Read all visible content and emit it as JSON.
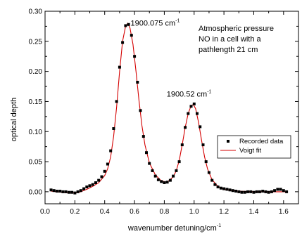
{
  "chart_data": {
    "type": "scatter",
    "xlabel": "wavenumber detuning/cm",
    "xlabel_sup": "-1",
    "ylabel": "optical depth",
    "xlim": [
      0.0,
      1.7
    ],
    "ylim": [
      -0.02,
      0.3
    ],
    "xticks": [
      0.0,
      0.2,
      0.4,
      0.6,
      0.8,
      1.0,
      1.2,
      1.4,
      1.6
    ],
    "xtick_labels": [
      "0.0",
      "0.2",
      "0.4",
      "0.6",
      "0.8",
      "1.0",
      "1.2",
      "1.4",
      "1.6"
    ],
    "yticks": [
      0.0,
      0.05,
      0.1,
      0.15,
      0.2,
      0.25,
      0.3
    ],
    "ytick_labels": [
      "0.00",
      "0.05",
      "0.10",
      "0.15",
      "0.20",
      "0.25",
      "0.30"
    ],
    "legend_position": "right",
    "colors": {
      "data": "#000000",
      "fit": "#d40000",
      "axis": "#000000"
    },
    "annotations": {
      "peak1": {
        "text": "1900.075 cm",
        "sup": "-1",
        "x": 0.555,
        "y": 0.281
      },
      "peak2": {
        "text": "1900.52 cm",
        "sup": "-1",
        "x": 0.995,
        "y": 0.145
      },
      "note_lines": [
        "Atmospheric pressure",
        "NO in a cell with a",
        "pathlength 21 cm"
      ]
    },
    "series": [
      {
        "name": "Recorded data",
        "style": "square-markers",
        "x": [
          0.04,
          0.06,
          0.08,
          0.1,
          0.12,
          0.14,
          0.16,
          0.18,
          0.2,
          0.22,
          0.24,
          0.26,
          0.28,
          0.3,
          0.32,
          0.34,
          0.36,
          0.38,
          0.4,
          0.42,
          0.44,
          0.46,
          0.48,
          0.5,
          0.52,
          0.54,
          0.56,
          0.58,
          0.6,
          0.62,
          0.64,
          0.66,
          0.68,
          0.7,
          0.72,
          0.74,
          0.76,
          0.78,
          0.8,
          0.82,
          0.84,
          0.86,
          0.88,
          0.9,
          0.92,
          0.94,
          0.96,
          0.98,
          1.0,
          1.02,
          1.04,
          1.06,
          1.08,
          1.1,
          1.12,
          1.14,
          1.16,
          1.18,
          1.2,
          1.22,
          1.24,
          1.26,
          1.28,
          1.3,
          1.32,
          1.34,
          1.36,
          1.38,
          1.4,
          1.42,
          1.44,
          1.46,
          1.48,
          1.5,
          1.52,
          1.54,
          1.56,
          1.58,
          1.6,
          1.62
        ],
        "y": [
          0.003,
          0.002,
          0.001,
          0.001,
          0.0,
          0.0,
          -0.001,
          -0.001,
          -0.002,
          0.0,
          0.002,
          0.005,
          0.008,
          0.01,
          0.012,
          0.015,
          0.019,
          0.025,
          0.034,
          0.046,
          0.068,
          0.105,
          0.15,
          0.207,
          0.248,
          0.276,
          0.278,
          0.26,
          0.225,
          0.182,
          0.135,
          0.092,
          0.065,
          0.047,
          0.035,
          0.026,
          0.02,
          0.017,
          0.015,
          0.016,
          0.019,
          0.026,
          0.035,
          0.05,
          0.078,
          0.107,
          0.13,
          0.142,
          0.146,
          0.13,
          0.108,
          0.078,
          0.05,
          0.032,
          0.019,
          0.012,
          0.008,
          0.006,
          0.005,
          0.004,
          0.003,
          0.002,
          0.001,
          0.0,
          -0.001,
          -0.001,
          0.0,
          0.0,
          -0.001,
          0.0,
          0.0,
          0.001,
          0.0,
          -0.001,
          0.0,
          0.002,
          0.004,
          0.004,
          0.002,
          0.0
        ]
      },
      {
        "name": "Voigt fit",
        "style": "line",
        "x": [
          0.04,
          0.08,
          0.12,
          0.16,
          0.2,
          0.24,
          0.28,
          0.32,
          0.36,
          0.4,
          0.42,
          0.44,
          0.46,
          0.48,
          0.5,
          0.52,
          0.54,
          0.555,
          0.57,
          0.59,
          0.61,
          0.63,
          0.65,
          0.67,
          0.7,
          0.74,
          0.78,
          0.82,
          0.86,
          0.88,
          0.9,
          0.92,
          0.94,
          0.96,
          0.98,
          0.995,
          1.01,
          1.03,
          1.05,
          1.07,
          1.09,
          1.12,
          1.16,
          1.2,
          1.25,
          1.3,
          1.4,
          1.5,
          1.62
        ],
        "y": [
          0.001,
          0.0,
          -0.001,
          -0.002,
          -0.002,
          0.0,
          0.004,
          0.009,
          0.015,
          0.027,
          0.038,
          0.058,
          0.092,
          0.14,
          0.2,
          0.25,
          0.275,
          0.28,
          0.272,
          0.245,
          0.2,
          0.152,
          0.11,
          0.078,
          0.048,
          0.028,
          0.018,
          0.016,
          0.025,
          0.035,
          0.052,
          0.078,
          0.107,
          0.13,
          0.143,
          0.145,
          0.138,
          0.115,
          0.085,
          0.058,
          0.038,
          0.02,
          0.009,
          0.004,
          0.002,
          0.001,
          0.0,
          0.0,
          0.0
        ]
      }
    ]
  }
}
